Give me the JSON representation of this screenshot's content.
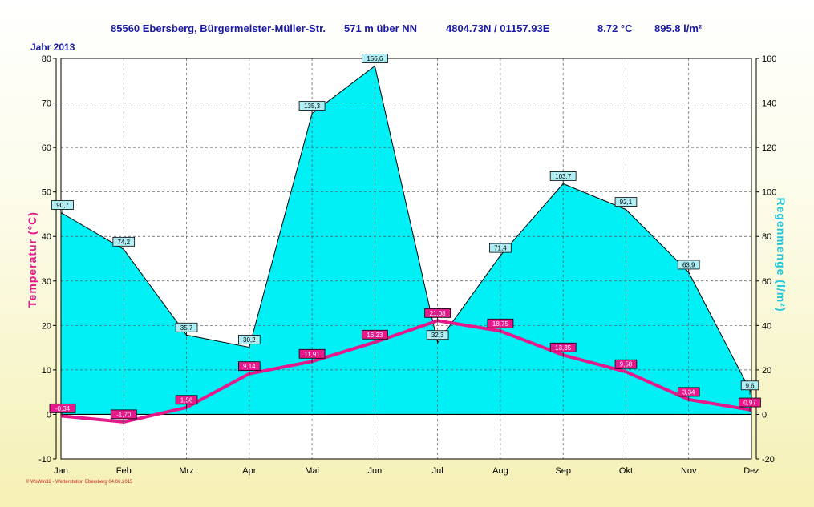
{
  "header": {
    "location": "85560 Ebersberg, Bürgermeister-Müller-Str.",
    "altitude": "571 m über NN",
    "coords": "4804.73N / 01157.93E",
    "avg_temp": "8.72 °C",
    "total_rain": "895.8 l/m²"
  },
  "year_label": "Jahr 2013",
  "footer": "© WsWin32 - Wetterstation Ebersberg 04.06.2015",
  "chart_data": {
    "type": "line",
    "categories": [
      "Jan",
      "Feb",
      "Mrz",
      "Apr",
      "Mai",
      "Jun",
      "Jul",
      "Aug",
      "Sep",
      "Okt",
      "Nov",
      "Dez"
    ],
    "series": [
      {
        "name": "Temperatur (°C)",
        "axis": "left",
        "values": [
          -0.34,
          -1.7,
          1.56,
          9.14,
          11.91,
          16.23,
          21.08,
          18.75,
          13.35,
          9.58,
          3.34,
          0.97
        ],
        "labels": [
          "-0,34",
          "-1,70",
          "1,56",
          "9,14",
          "11,91",
          "16,23",
          "21,08",
          "18,75",
          "13,35",
          "9,58",
          "3,34",
          "0,97"
        ],
        "color": "#e6198c"
      },
      {
        "name": "Regenmenge (l/m²)",
        "axis": "right",
        "type": "area",
        "values": [
          90.7,
          74.2,
          35.7,
          30.2,
          135.3,
          156.6,
          32.3,
          71.4,
          103.7,
          92.1,
          63.9,
          9.6
        ],
        "labels": [
          "90,7",
          "74,2",
          "35,7",
          "30,2",
          "135,3",
          "156,6",
          "32,3",
          "71,4",
          "103,7",
          "92,1",
          "63,9",
          "9,6"
        ],
        "color": "#00f0f5"
      }
    ],
    "ylabel_left": "Temperatur (°C)",
    "ylabel_right": "Regenmenge (l/m²)",
    "ylim_left": [
      -10,
      80
    ],
    "ylim_right": [
      -20,
      160
    ],
    "yticks_left": [
      -10,
      0,
      10,
      20,
      30,
      40,
      50,
      60,
      70,
      80
    ],
    "yticks_right": [
      -20,
      0,
      20,
      40,
      60,
      80,
      100,
      120,
      140,
      160
    ],
    "grid": true
  }
}
